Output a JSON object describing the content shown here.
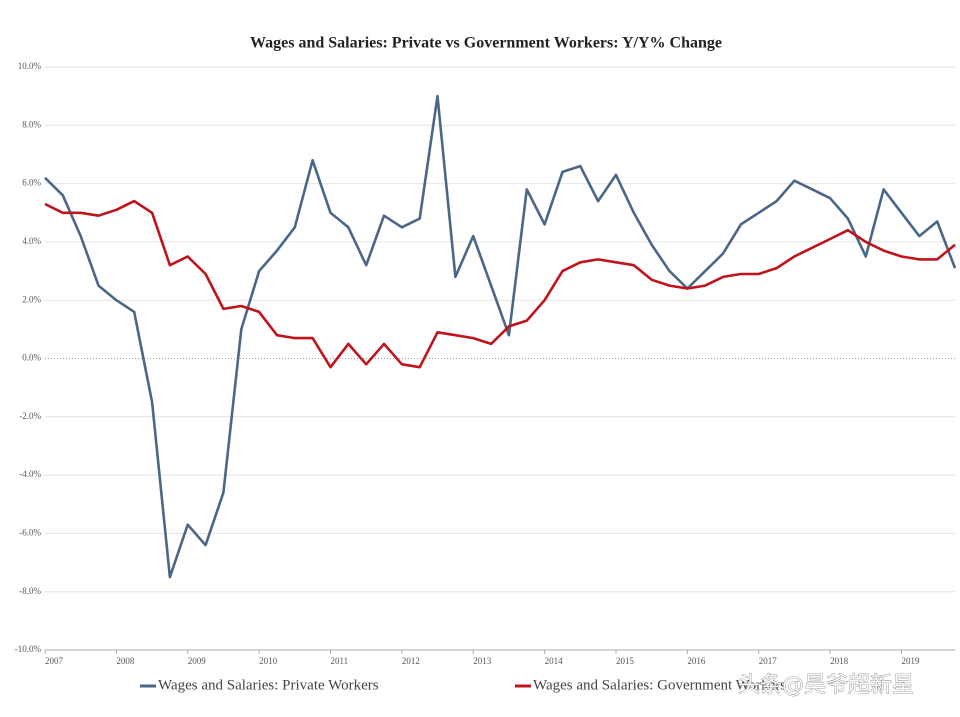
{
  "chart_data": {
    "type": "line",
    "title": "Wages and Salaries: Private vs Government Workers: Y/Y% Change",
    "watermark": "头条@昊爷超新星",
    "x": [
      2007,
      2007.25,
      2007.5,
      2007.75,
      2008,
      2008.25,
      2008.5,
      2008.75,
      2009,
      2009.25,
      2009.5,
      2009.75,
      2010,
      2010.25,
      2010.5,
      2010.75,
      2011,
      2011.25,
      2011.5,
      2011.75,
      2012,
      2012.25,
      2012.5,
      2012.75,
      2013,
      2013.25,
      2013.5,
      2013.75,
      2014,
      2014.25,
      2014.5,
      2014.75,
      2015,
      2015.25,
      2015.5,
      2015.75,
      2016,
      2016.25,
      2016.5,
      2016.75,
      2017,
      2017.25,
      2017.5,
      2017.75,
      2018,
      2018.25,
      2018.5,
      2018.75,
      2019,
      2019.25,
      2019.5,
      2019.75
    ],
    "series": [
      {
        "name": "Wages and Salaries: Private Workers",
        "color": "#4b6788",
        "values": [
          6.2,
          5.6,
          4.2,
          2.5,
          2.0,
          1.6,
          -1.5,
          -7.5,
          -5.7,
          -6.4,
          -4.6,
          1.0,
          3.0,
          3.7,
          4.5,
          6.8,
          5.0,
          4.5,
          3.2,
          4.9,
          4.5,
          4.8,
          9.0,
          2.8,
          4.2,
          2.5,
          0.8,
          5.8,
          4.6,
          6.4,
          6.6,
          5.4,
          6.3,
          5.0,
          3.9,
          3.0,
          2.4,
          3.0,
          3.6,
          4.6,
          5.0,
          5.4,
          6.1,
          5.8,
          5.5,
          4.8,
          3.5,
          5.8,
          5.0,
          4.2,
          4.7,
          3.1
        ]
      },
      {
        "name": "Wages and Salaries: Government Workers",
        "color": "#c0141d",
        "values": [
          5.3,
          5.0,
          5.0,
          4.9,
          5.1,
          5.4,
          5.0,
          3.2,
          3.5,
          2.9,
          1.7,
          1.8,
          1.6,
          0.8,
          0.7,
          0.7,
          -0.3,
          0.5,
          -0.2,
          0.5,
          -0.2,
          -0.3,
          0.9,
          0.8,
          0.7,
          0.5,
          1.1,
          1.3,
          2.0,
          3.0,
          3.3,
          3.4,
          3.3,
          3.2,
          2.7,
          2.5,
          2.4,
          2.5,
          2.8,
          2.9,
          2.9,
          3.1,
          3.5,
          3.8,
          4.1,
          4.4,
          4.0,
          3.7,
          3.5,
          3.4,
          3.4,
          3.9
        ]
      }
    ],
    "xlim": [
      2007,
      2019.75
    ],
    "xticks": [
      2007,
      2008,
      2009,
      2010,
      2011,
      2012,
      2013,
      2014,
      2015,
      2016,
      2017,
      2018,
      2019
    ],
    "ylim": [
      -10,
      10
    ],
    "yticks": [
      {
        "value": -10,
        "label": "-10.0%"
      },
      {
        "value": -8,
        "label": "-8.0%"
      },
      {
        "value": -6,
        "label": "-6.0%"
      },
      {
        "value": -4,
        "label": "-4.0%"
      },
      {
        "value": -2,
        "label": "-2.0%"
      },
      {
        "value": 0,
        "label": "0.0%"
      },
      {
        "value": 2,
        "label": "2.0%"
      },
      {
        "value": 4,
        "label": "4.0%"
      },
      {
        "value": 6,
        "label": "6.0%"
      },
      {
        "value": 8,
        "label": "8.0%"
      },
      {
        "value": 10,
        "label": "10.0%"
      }
    ],
    "grid": true,
    "legend": "bottom"
  }
}
